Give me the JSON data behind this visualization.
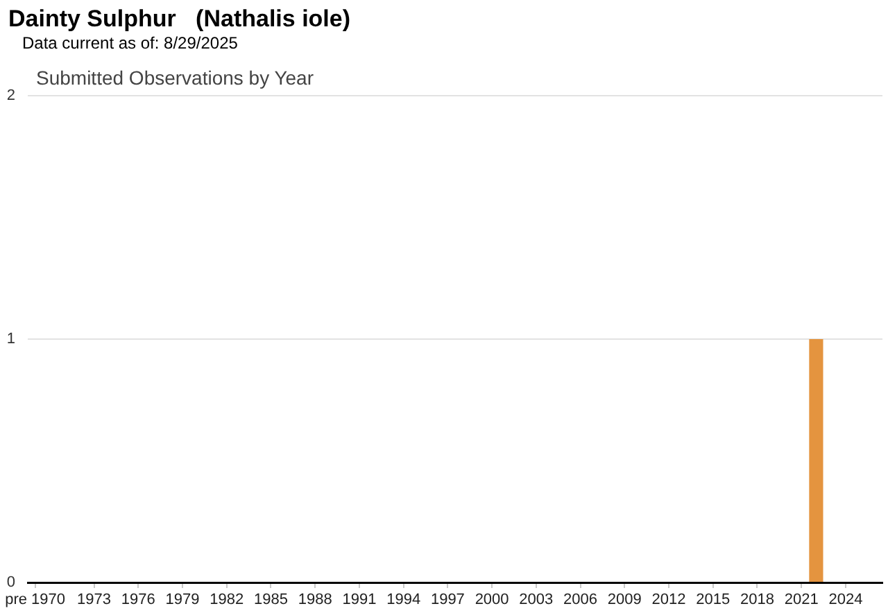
{
  "chart_data": {
    "type": "bar",
    "title": "Dainty Sulphur   (Nathalis iole)",
    "subtitle": "Data current as of: 8/29/2025",
    "annotations": [
      "Submitted Observations by Year"
    ],
    "categories": [
      "pre 1970",
      null,
      null,
      null,
      "1973",
      null,
      null,
      "1976",
      null,
      null,
      "1979",
      null,
      null,
      "1982",
      null,
      null,
      "1985",
      null,
      null,
      "1988",
      null,
      null,
      "1991",
      null,
      null,
      "1994",
      null,
      null,
      "1997",
      null,
      null,
      "2000",
      null,
      null,
      "2003",
      null,
      null,
      "2006",
      null,
      null,
      "2009",
      null,
      null,
      "2012",
      null,
      null,
      "2015",
      null,
      null,
      "2018",
      null,
      null,
      "2021",
      null,
      null,
      "2024",
      null,
      null
    ],
    "values": [
      0,
      0,
      0,
      0,
      0,
      0,
      0,
      0,
      0,
      0,
      0,
      0,
      0,
      0,
      0,
      0,
      0,
      0,
      0,
      0,
      0,
      0,
      0,
      0,
      0,
      0,
      0,
      0,
      0,
      0,
      0,
      0,
      0,
      0,
      0,
      0,
      0,
      0,
      0,
      0,
      0,
      0,
      0,
      0,
      0,
      0,
      0,
      0,
      0,
      0,
      0,
      0,
      0,
      1,
      0,
      0,
      0,
      0
    ],
    "color": "#e4943f",
    "ylim": [
      0,
      2
    ],
    "yticks": [
      0,
      1,
      2
    ],
    "grid": "y"
  }
}
